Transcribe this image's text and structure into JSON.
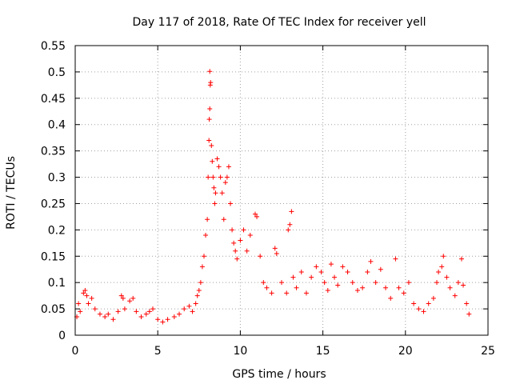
{
  "chart_data": {
    "type": "scatter",
    "title": "Day 117 of 2018, Rate Of TEC Index for receiver yell",
    "xlabel": "GPS time / hours",
    "ylabel": "ROTI / TECUs",
    "xlim": [
      0,
      25
    ],
    "ylim": [
      0,
      0.55
    ],
    "xticks": [
      0,
      5,
      10,
      15,
      20,
      25
    ],
    "xtick_labels": [
      "0",
      "5",
      "10",
      "15",
      "20",
      "25"
    ],
    "yticks": [
      0,
      0.05,
      0.1,
      0.15,
      0.2,
      0.25,
      0.3,
      0.35,
      0.4,
      0.45,
      0.5,
      0.55
    ],
    "ytick_labels": [
      "0",
      "0.05",
      "0.1",
      "0.15",
      "0.2",
      "0.25",
      "0.3",
      "0.35",
      "0.4",
      "0.45",
      "0.5",
      "0.55"
    ],
    "grid": true,
    "marker": "+",
    "color": "#ff0000",
    "series": [
      {
        "name": "ROTI",
        "points": [
          [
            0.1,
            0.035
          ],
          [
            0.2,
            0.06
          ],
          [
            0.3,
            0.045
          ],
          [
            0.5,
            0.08
          ],
          [
            0.6,
            0.085
          ],
          [
            0.7,
            0.075
          ],
          [
            0.8,
            0.06
          ],
          [
            1.0,
            0.07
          ],
          [
            1.2,
            0.05
          ],
          [
            1.5,
            0.04
          ],
          [
            1.8,
            0.035
          ],
          [
            2.0,
            0.04
          ],
          [
            2.3,
            0.03
          ],
          [
            2.6,
            0.045
          ],
          [
            2.8,
            0.075
          ],
          [
            2.9,
            0.07
          ],
          [
            3.0,
            0.05
          ],
          [
            3.3,
            0.065
          ],
          [
            3.5,
            0.07
          ],
          [
            3.7,
            0.045
          ],
          [
            4.0,
            0.035
          ],
          [
            4.3,
            0.04
          ],
          [
            4.5,
            0.045
          ],
          [
            4.7,
            0.05
          ],
          [
            5.0,
            0.03
          ],
          [
            5.3,
            0.025
          ],
          [
            5.6,
            0.03
          ],
          [
            6.0,
            0.035
          ],
          [
            6.3,
            0.04
          ],
          [
            6.6,
            0.05
          ],
          [
            6.9,
            0.055
          ],
          [
            7.1,
            0.045
          ],
          [
            7.3,
            0.06
          ],
          [
            7.4,
            0.075
          ],
          [
            7.5,
            0.085
          ],
          [
            7.6,
            0.1
          ],
          [
            7.7,
            0.13
          ],
          [
            7.8,
            0.15
          ],
          [
            7.9,
            0.19
          ],
          [
            8.0,
            0.22
          ],
          [
            8.05,
            0.3
          ],
          [
            8.1,
            0.37
          ],
          [
            8.12,
            0.41
          ],
          [
            8.15,
            0.43
          ],
          [
            8.18,
            0.475
          ],
          [
            8.2,
            0.48
          ],
          [
            8.15,
            0.501
          ],
          [
            8.25,
            0.36
          ],
          [
            8.3,
            0.33
          ],
          [
            8.35,
            0.3
          ],
          [
            8.4,
            0.28
          ],
          [
            8.45,
            0.25
          ],
          [
            8.5,
            0.27
          ],
          [
            8.6,
            0.335
          ],
          [
            8.7,
            0.32
          ],
          [
            8.8,
            0.3
          ],
          [
            8.9,
            0.27
          ],
          [
            9.0,
            0.22
          ],
          [
            9.1,
            0.29
          ],
          [
            9.2,
            0.3
          ],
          [
            9.3,
            0.32
          ],
          [
            9.4,
            0.25
          ],
          [
            9.5,
            0.2
          ],
          [
            9.6,
            0.175
          ],
          [
            9.7,
            0.16
          ],
          [
            9.8,
            0.145
          ],
          [
            10.0,
            0.18
          ],
          [
            10.2,
            0.2
          ],
          [
            10.4,
            0.16
          ],
          [
            10.6,
            0.19
          ],
          [
            10.9,
            0.23
          ],
          [
            11.0,
            0.225
          ],
          [
            11.2,
            0.15
          ],
          [
            11.4,
            0.1
          ],
          [
            11.6,
            0.09
          ],
          [
            11.9,
            0.08
          ],
          [
            12.1,
            0.165
          ],
          [
            12.2,
            0.155
          ],
          [
            12.5,
            0.1
          ],
          [
            12.8,
            0.08
          ],
          [
            12.9,
            0.2
          ],
          [
            13.0,
            0.21
          ],
          [
            13.1,
            0.235
          ],
          [
            13.2,
            0.11
          ],
          [
            13.4,
            0.09
          ],
          [
            13.7,
            0.12
          ],
          [
            14.0,
            0.08
          ],
          [
            14.3,
            0.11
          ],
          [
            14.6,
            0.13
          ],
          [
            14.9,
            0.12
          ],
          [
            15.1,
            0.1
          ],
          [
            15.3,
            0.085
          ],
          [
            15.5,
            0.135
          ],
          [
            15.7,
            0.11
          ],
          [
            15.9,
            0.095
          ],
          [
            16.2,
            0.13
          ],
          [
            16.5,
            0.12
          ],
          [
            16.8,
            0.1
          ],
          [
            17.1,
            0.085
          ],
          [
            17.4,
            0.09
          ],
          [
            17.7,
            0.12
          ],
          [
            17.9,
            0.14
          ],
          [
            18.2,
            0.1
          ],
          [
            18.5,
            0.125
          ],
          [
            18.8,
            0.09
          ],
          [
            19.1,
            0.07
          ],
          [
            19.4,
            0.145
          ],
          [
            19.6,
            0.09
          ],
          [
            19.9,
            0.08
          ],
          [
            20.2,
            0.1
          ],
          [
            20.5,
            0.06
          ],
          [
            20.8,
            0.05
          ],
          [
            21.1,
            0.045
          ],
          [
            21.4,
            0.06
          ],
          [
            21.7,
            0.07
          ],
          [
            21.9,
            0.1
          ],
          [
            22.0,
            0.12
          ],
          [
            22.2,
            0.13
          ],
          [
            22.3,
            0.15
          ],
          [
            22.5,
            0.11
          ],
          [
            22.7,
            0.09
          ],
          [
            23.0,
            0.075
          ],
          [
            23.2,
            0.1
          ],
          [
            23.4,
            0.145
          ],
          [
            23.5,
            0.095
          ],
          [
            23.7,
            0.06
          ],
          [
            23.85,
            0.04
          ]
        ]
      }
    ]
  }
}
